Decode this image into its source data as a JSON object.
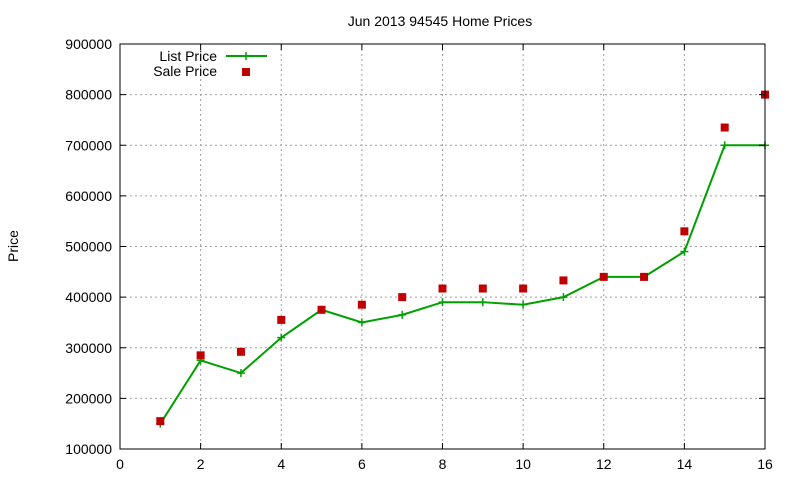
{
  "chart_data": {
    "type": "line",
    "title": "Jun 2013 94545 Home Prices",
    "xlabel": "",
    "ylabel": "Price",
    "xlim": [
      0,
      16
    ],
    "ylim": [
      100000,
      900000
    ],
    "x_ticks": [
      "0",
      "2",
      "4",
      "6",
      "8",
      "10",
      "12",
      "14",
      "16"
    ],
    "y_ticks": [
      "100000",
      "200000",
      "300000",
      "400000",
      "500000",
      "600000",
      "700000",
      "800000",
      "900000"
    ],
    "grid": true,
    "legend_position": "top-left",
    "series": [
      {
        "name": "List Price",
        "style": "line-with-plus-markers",
        "color": "#00a000",
        "x": [
          1,
          2,
          3,
          4,
          5,
          6,
          7,
          8,
          9,
          10,
          11,
          12,
          13,
          14,
          15,
          16
        ],
        "values": [
          150000,
          275000,
          250000,
          320000,
          375000,
          350000,
          365000,
          390000,
          390000,
          385000,
          400000,
          440000,
          440000,
          490000,
          700000,
          700000
        ]
      },
      {
        "name": "Sale Price",
        "style": "square-points",
        "color": "#c00000",
        "x": [
          1,
          2,
          3,
          4,
          5,
          6,
          7,
          8,
          9,
          10,
          11,
          12,
          13,
          14,
          15,
          16
        ],
        "values": [
          155000,
          285000,
          292000,
          355000,
          375000,
          385000,
          400000,
          417000,
          417000,
          417000,
          433000,
          440000,
          440000,
          530000,
          735000,
          800000
        ]
      }
    ]
  }
}
